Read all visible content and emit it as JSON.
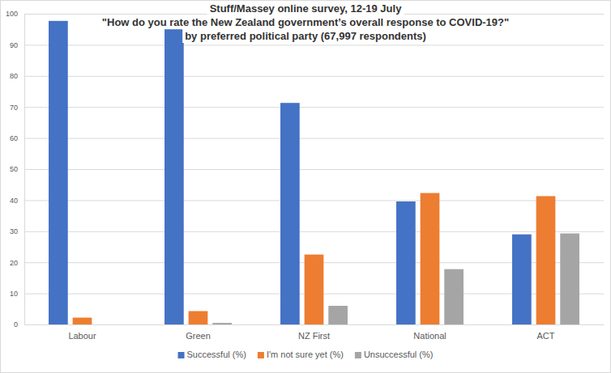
{
  "chart_data": {
    "type": "bar",
    "title": "Stuff/Massey online survey, 12-19 July",
    "subtitle": [
      "\"How do you rate the New Zealand government’s overall response to COVID-19?\"",
      "by preferred political party (67,997 respondents)"
    ],
    "categories": [
      "Labour",
      "Green",
      "NZ First",
      "National",
      "ACT"
    ],
    "series": [
      {
        "name": "Successful (%)",
        "color": "#4472c4",
        "values": [
          97.7,
          95,
          71.3,
          39.6,
          29
        ]
      },
      {
        "name": "I'm not sure yet (%)",
        "color": "#ed7d31",
        "values": [
          2.2,
          4.3,
          22.5,
          42.3,
          41.3
        ]
      },
      {
        "name": "Unsuccessful (%)",
        "color": "#a5a5a5",
        "values": [
          0,
          0.5,
          6,
          17.8,
          29.3
        ]
      }
    ],
    "ylim": [
      0,
      100
    ],
    "yticks": [
      0,
      10,
      20,
      30,
      40,
      50,
      60,
      70,
      80,
      90,
      100
    ],
    "grid": true,
    "legend": "bottom"
  }
}
